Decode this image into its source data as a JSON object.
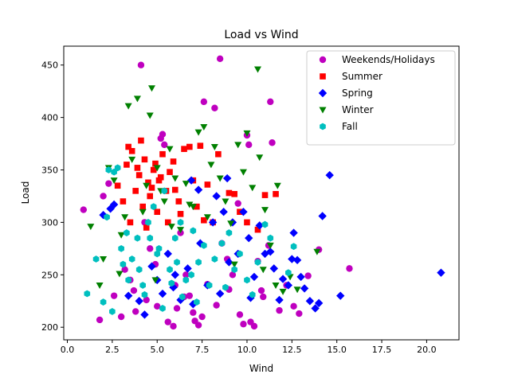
{
  "chart_data": {
    "type": "scatter",
    "title": "Load vs Wind",
    "xlabel": "Wind",
    "ylabel": "Load",
    "xlim": [
      -0.2,
      21.8
    ],
    "ylim": [
      188,
      468
    ],
    "xticks": [
      0.0,
      2.5,
      5.0,
      7.5,
      10.0,
      12.5,
      15.0,
      17.5,
      20.0
    ],
    "xtick_labels": [
      "0.0",
      "2.5",
      "5.0",
      "7.5",
      "10.0",
      "12.5",
      "15.0",
      "17.5",
      "20.0"
    ],
    "yticks": [
      200,
      250,
      300,
      350,
      400,
      450
    ],
    "ytick_labels": [
      "200",
      "250",
      "300",
      "350",
      "400",
      "450"
    ],
    "grid": false,
    "legend_position": "top-right",
    "series": [
      {
        "name": "Weekends/Holidays",
        "color": "#bf00bf",
        "marker": "circle",
        "points": [
          [
            0.9,
            312
          ],
          [
            1.8,
            207
          ],
          [
            2.0,
            325
          ],
          [
            2.3,
            337
          ],
          [
            2.6,
            230
          ],
          [
            3.0,
            210
          ],
          [
            3.2,
            255
          ],
          [
            3.5,
            245
          ],
          [
            3.8,
            215
          ],
          [
            4.1,
            450
          ],
          [
            4.3,
            300
          ],
          [
            4.6,
            275
          ],
          [
            4.9,
            260
          ],
          [
            5.2,
            380
          ],
          [
            5.3,
            384
          ],
          [
            5.4,
            374
          ],
          [
            5.6,
            205
          ],
          [
            5.9,
            201
          ],
          [
            6.1,
            218
          ],
          [
            6.3,
            290
          ],
          [
            6.6,
            250
          ],
          [
            6.8,
            230
          ],
          [
            7.1,
            206
          ],
          [
            7.3,
            202
          ],
          [
            7.5,
            210
          ],
          [
            7.6,
            415
          ],
          [
            8.2,
            409
          ],
          [
            8.5,
            456
          ],
          [
            8.6,
            280
          ],
          [
            8.9,
            265
          ],
          [
            9.2,
            250
          ],
          [
            9.5,
            318
          ],
          [
            9.8,
            203
          ],
          [
            10.0,
            383
          ],
          [
            10.1,
            374
          ],
          [
            10.2,
            205
          ],
          [
            10.4,
            201
          ],
          [
            10.6,
            263
          ],
          [
            10.8,
            235
          ],
          [
            11.2,
            278
          ],
          [
            11.3,
            415
          ],
          [
            11.4,
            376
          ],
          [
            11.8,
            216
          ],
          [
            12.2,
            240
          ],
          [
            12.6,
            220
          ],
          [
            12.9,
            213
          ],
          [
            13.4,
            249
          ],
          [
            14.0,
            274
          ],
          [
            15.7,
            256
          ],
          [
            3.7,
            235
          ],
          [
            4.4,
            226
          ],
          [
            5.0,
            220
          ],
          [
            6.0,
            240
          ],
          [
            6.5,
            229
          ],
          [
            7.0,
            214
          ],
          [
            7.8,
            241
          ],
          [
            8.3,
            221
          ],
          [
            9.0,
            236
          ],
          [
            9.6,
            212
          ],
          [
            10.9,
            229
          ]
        ]
      },
      {
        "name": "Summer",
        "color": "#ff0000",
        "marker": "square",
        "points": [
          [
            2.8,
            335
          ],
          [
            3.1,
            320
          ],
          [
            3.3,
            355
          ],
          [
            3.4,
            372
          ],
          [
            3.6,
            368
          ],
          [
            3.8,
            330
          ],
          [
            4.0,
            345
          ],
          [
            4.1,
            378
          ],
          [
            4.2,
            315
          ],
          [
            4.3,
            360
          ],
          [
            4.5,
            338
          ],
          [
            4.6,
            325
          ],
          [
            4.8,
            350
          ],
          [
            5.0,
            310
          ],
          [
            5.1,
            340
          ],
          [
            5.3,
            365
          ],
          [
            5.5,
            330
          ],
          [
            5.7,
            348
          ],
          [
            5.9,
            358
          ],
          [
            6.2,
            320
          ],
          [
            6.5,
            370
          ],
          [
            6.8,
            372
          ],
          [
            7.0,
            340
          ],
          [
            7.4,
            373
          ],
          [
            7.8,
            336
          ],
          [
            8.4,
            365
          ],
          [
            9.0,
            328
          ],
          [
            9.3,
            327
          ],
          [
            9.6,
            310
          ],
          [
            10.0,
            300
          ],
          [
            10.6,
            293
          ],
          [
            11.0,
            326
          ],
          [
            11.6,
            327
          ],
          [
            3.5,
            300
          ],
          [
            4.4,
            295
          ],
          [
            5.6,
            300
          ],
          [
            6.3,
            308
          ],
          [
            7.2,
            315
          ],
          [
            7.6,
            302
          ],
          [
            8.1,
            300
          ],
          [
            3.9,
            352
          ],
          [
            4.7,
            333
          ],
          [
            5.2,
            343
          ],
          [
            6.0,
            331
          ],
          [
            4.9,
            356
          ]
        ]
      },
      {
        "name": "Spring",
        "color": "#0000ff",
        "marker": "diamond",
        "points": [
          [
            2.0,
            307
          ],
          [
            2.4,
            313
          ],
          [
            2.6,
            317
          ],
          [
            3.4,
            230
          ],
          [
            4.0,
            225
          ],
          [
            4.3,
            212
          ],
          [
            4.7,
            258
          ],
          [
            5.0,
            245
          ],
          [
            5.3,
            232
          ],
          [
            5.6,
            270
          ],
          [
            6.0,
            250
          ],
          [
            6.3,
            226
          ],
          [
            6.7,
            256
          ],
          [
            7.0,
            222
          ],
          [
            7.4,
            280
          ],
          [
            7.8,
            240
          ],
          [
            8.1,
            300
          ],
          [
            8.3,
            325
          ],
          [
            8.7,
            310
          ],
          [
            8.9,
            342
          ],
          [
            9.2,
            300
          ],
          [
            9.5,
            270
          ],
          [
            9.8,
            310
          ],
          [
            10.1,
            285
          ],
          [
            10.4,
            248
          ],
          [
            10.7,
            297
          ],
          [
            11.0,
            270
          ],
          [
            11.3,
            272
          ],
          [
            11.5,
            256
          ],
          [
            11.8,
            226
          ],
          [
            12.0,
            246
          ],
          [
            12.3,
            240
          ],
          [
            12.6,
            290
          ],
          [
            12.8,
            264
          ],
          [
            13.0,
            248
          ],
          [
            13.2,
            237
          ],
          [
            13.5,
            225
          ],
          [
            13.8,
            218
          ],
          [
            14.0,
            223
          ],
          [
            14.2,
            306
          ],
          [
            14.6,
            345
          ],
          [
            15.2,
            230
          ],
          [
            20.8,
            252
          ],
          [
            6.9,
            340
          ],
          [
            7.3,
            331
          ],
          [
            5.9,
            238
          ],
          [
            8.5,
            232
          ],
          [
            9.0,
            262
          ],
          [
            10.2,
            228
          ],
          [
            12.5,
            265
          ]
        ]
      },
      {
        "name": "Winter",
        "color": "#008000",
        "marker": "triangle-down",
        "points": [
          [
            1.3,
            296
          ],
          [
            1.8,
            240
          ],
          [
            2.0,
            265
          ],
          [
            2.3,
            352
          ],
          [
            2.6,
            340
          ],
          [
            3.0,
            288
          ],
          [
            3.4,
            411
          ],
          [
            3.6,
            360
          ],
          [
            3.9,
            418
          ],
          [
            4.2,
            310
          ],
          [
            4.4,
            335
          ],
          [
            4.6,
            402
          ],
          [
            4.7,
            428
          ],
          [
            5.0,
            352
          ],
          [
            5.2,
            330
          ],
          [
            5.4,
            320
          ],
          [
            5.7,
            370
          ],
          [
            6.0,
            342
          ],
          [
            6.3,
            293
          ],
          [
            6.6,
            337
          ],
          [
            7.0,
            315
          ],
          [
            7.3,
            386
          ],
          [
            7.6,
            391
          ],
          [
            8.0,
            355
          ],
          [
            8.2,
            372
          ],
          [
            8.5,
            342
          ],
          [
            8.8,
            320
          ],
          [
            9.1,
            299
          ],
          [
            9.5,
            374
          ],
          [
            9.8,
            348
          ],
          [
            10.0,
            385
          ],
          [
            10.3,
            333
          ],
          [
            10.6,
            446
          ],
          [
            10.7,
            362
          ],
          [
            11.0,
            312
          ],
          [
            11.3,
            278
          ],
          [
            11.7,
            335
          ],
          [
            12.0,
            234
          ],
          [
            12.4,
            248
          ],
          [
            12.8,
            236
          ],
          [
            13.9,
            272
          ],
          [
            3.2,
            305
          ],
          [
            5.8,
            296
          ],
          [
            6.8,
            317
          ],
          [
            7.8,
            305
          ],
          [
            2.9,
            251
          ],
          [
            4.9,
            245
          ],
          [
            9.3,
            260
          ],
          [
            10.9,
            255
          ],
          [
            11.6,
            240
          ]
        ]
      },
      {
        "name": "Fall",
        "color": "#00bfbf",
        "marker": "hexagon",
        "points": [
          [
            1.1,
            232
          ],
          [
            1.6,
            265
          ],
          [
            2.0,
            224
          ],
          [
            2.2,
            305
          ],
          [
            2.3,
            350
          ],
          [
            2.6,
            348
          ],
          [
            2.8,
            352
          ],
          [
            3.0,
            275
          ],
          [
            3.3,
            290
          ],
          [
            3.6,
            265
          ],
          [
            3.9,
            285
          ],
          [
            4.2,
            240
          ],
          [
            4.5,
            300
          ],
          [
            4.8,
            315
          ],
          [
            5.1,
            275
          ],
          [
            5.4,
            330
          ],
          [
            5.7,
            255
          ],
          [
            6.0,
            285
          ],
          [
            6.3,
            300
          ],
          [
            6.6,
            245
          ],
          [
            7.0,
            292
          ],
          [
            7.3,
            262
          ],
          [
            7.6,
            278
          ],
          [
            7.9,
            240
          ],
          [
            8.2,
            265
          ],
          [
            8.6,
            280
          ],
          [
            9.0,
            290
          ],
          [
            9.3,
            255
          ],
          [
            9.6,
            270
          ],
          [
            10.0,
            245
          ],
          [
            10.3,
            231
          ],
          [
            10.6,
            262
          ],
          [
            11.0,
            298
          ],
          [
            11.3,
            285
          ],
          [
            12.3,
            252
          ],
          [
            12.6,
            277
          ],
          [
            2.5,
            215
          ],
          [
            3.4,
            245
          ],
          [
            4.3,
            231
          ],
          [
            5.3,
            218
          ],
          [
            6.4,
            229
          ],
          [
            7.2,
            224
          ],
          [
            8.8,
            238
          ],
          [
            4.0,
            255
          ],
          [
            5.0,
            270
          ],
          [
            6.1,
            262
          ],
          [
            3.1,
            260
          ],
          [
            4.6,
            285
          ],
          [
            5.8,
            242
          ],
          [
            6.9,
            250
          ]
        ]
      }
    ]
  }
}
